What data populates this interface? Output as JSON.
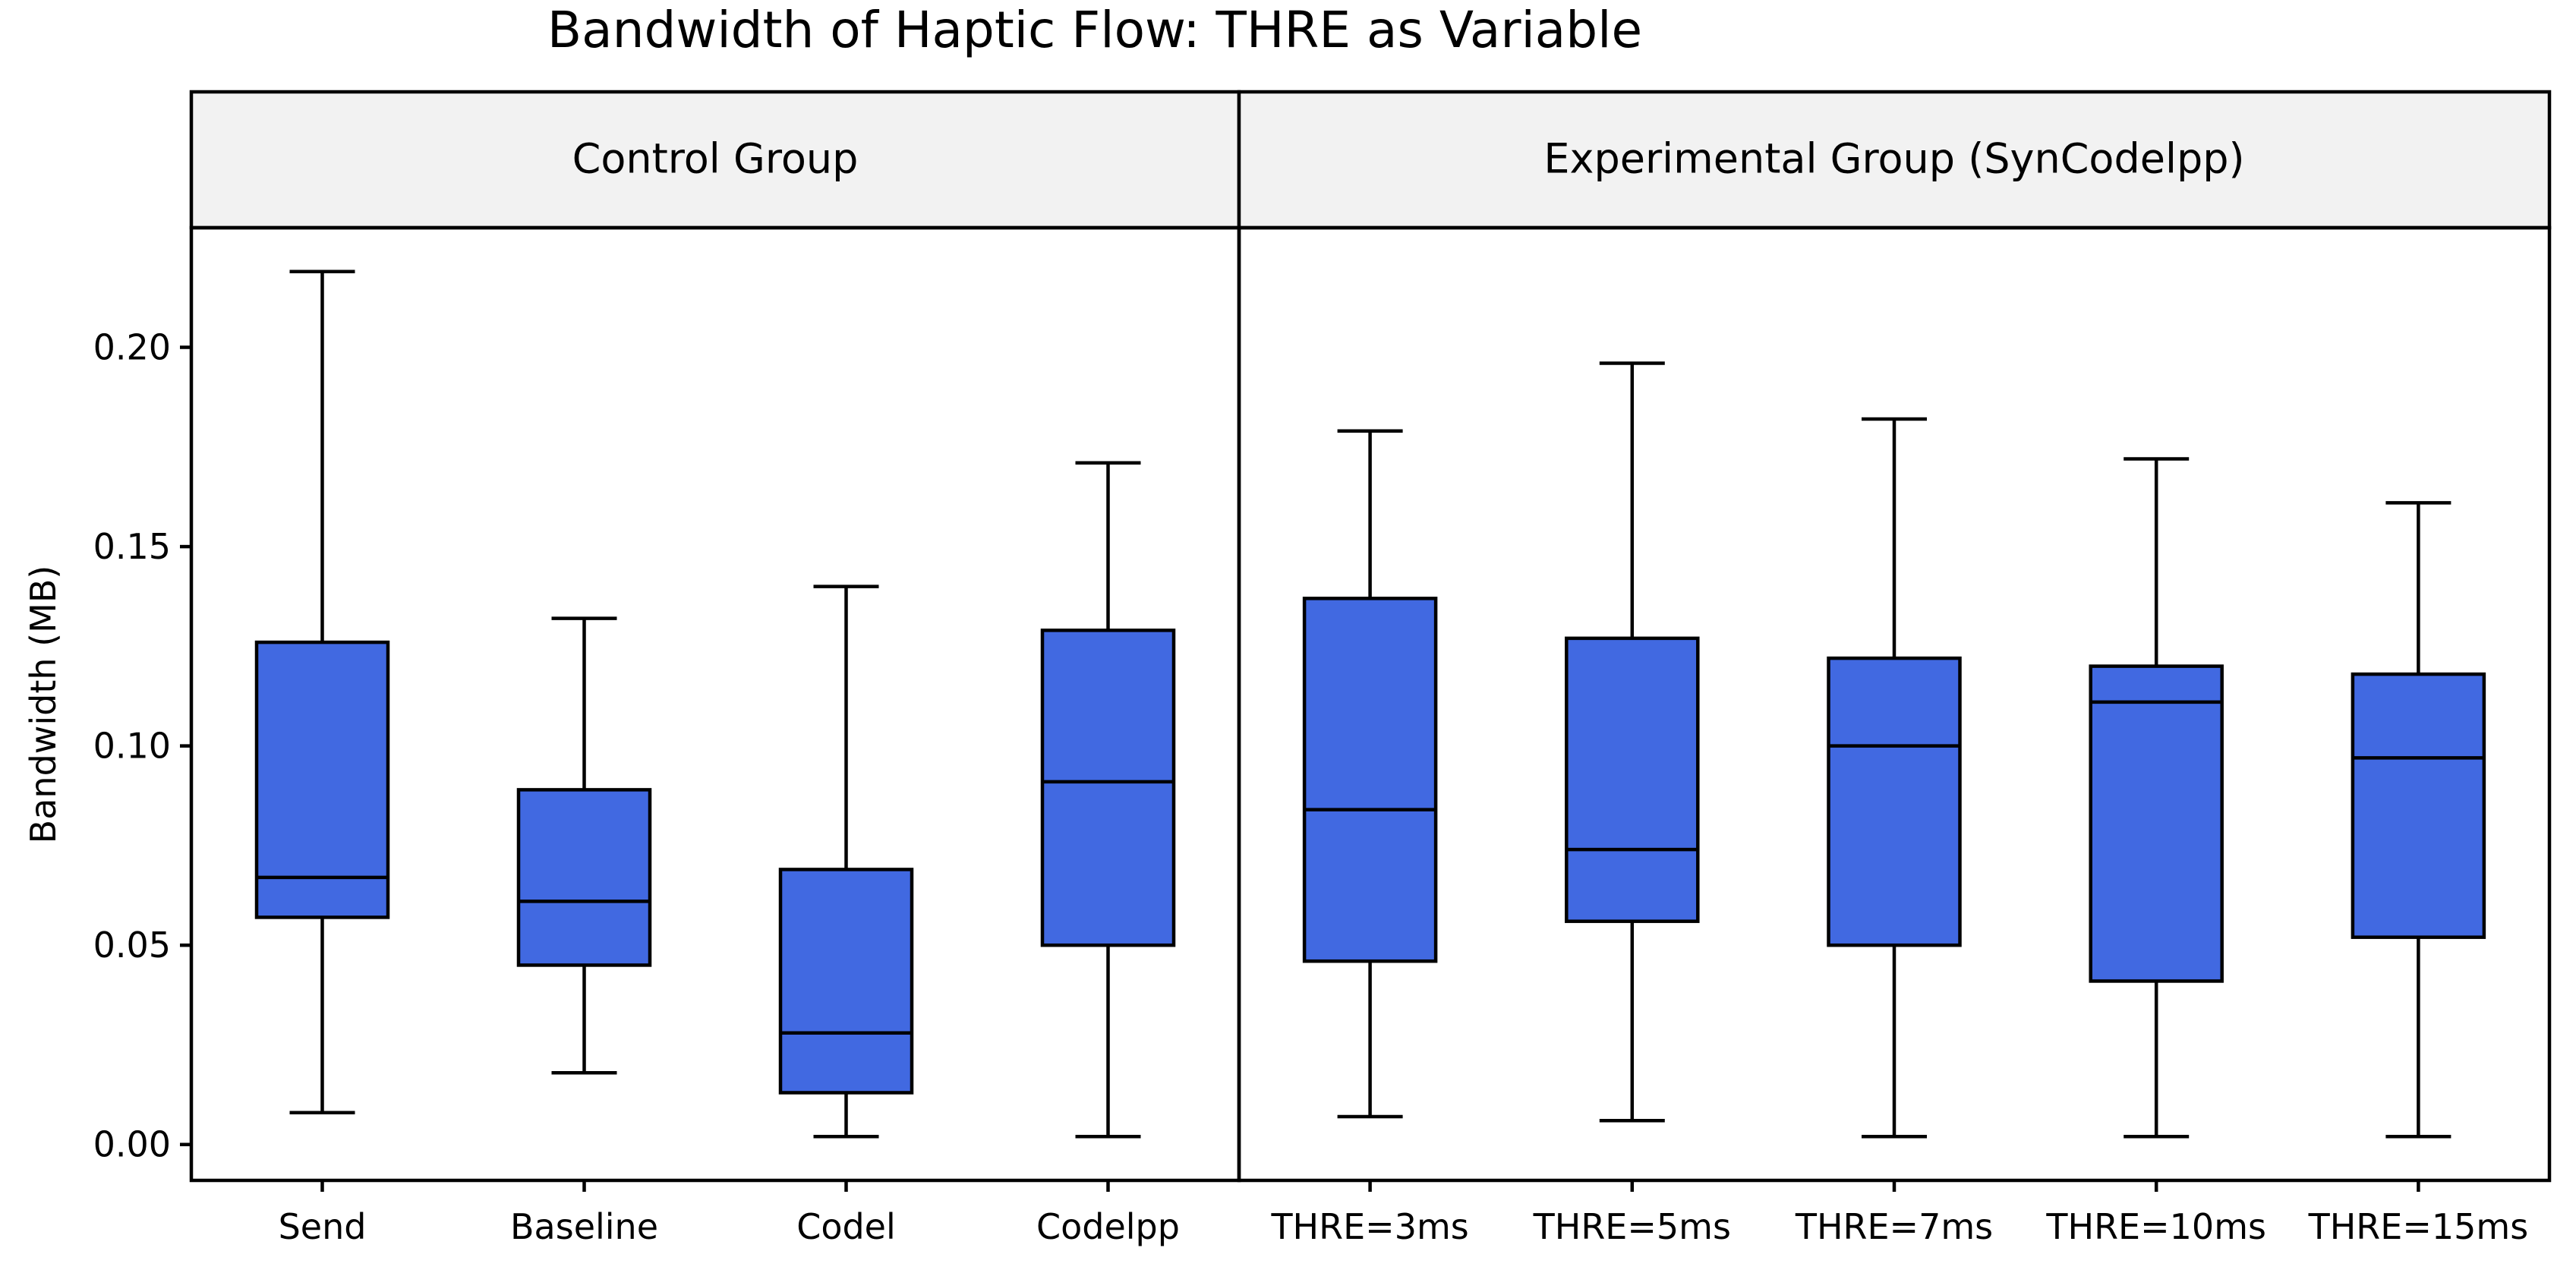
{
  "chart_data": {
    "type": "box",
    "title": "Bandwidth of Haptic Flow: THRE as Variable",
    "ylabel": "Bandwidth (MB)",
    "ylim": [
      -0.009,
      0.23
    ],
    "yticks": [
      0.0,
      0.05,
      0.1,
      0.15,
      0.2
    ],
    "ytick_labels": [
      "0.00",
      "0.05",
      "0.10",
      "0.15",
      "0.20"
    ],
    "grid": false,
    "colors": {
      "box_fill": "#4169E1",
      "stroke": "#000000",
      "panel_header_fill": "#F2F2F2"
    },
    "panels": [
      {
        "title": "Control Group",
        "boxes": [
          {
            "label": "Send",
            "whisker_low": 0.008,
            "q1": 0.057,
            "median": 0.067,
            "q3": 0.126,
            "whisker_high": 0.219
          },
          {
            "label": "Baseline",
            "whisker_low": 0.018,
            "q1": 0.045,
            "median": 0.061,
            "q3": 0.089,
            "whisker_high": 0.132
          },
          {
            "label": "Codel",
            "whisker_low": 0.002,
            "q1": 0.013,
            "median": 0.028,
            "q3": 0.069,
            "whisker_high": 0.14
          },
          {
            "label": "Codelpp",
            "whisker_low": 0.002,
            "q1": 0.05,
            "median": 0.091,
            "q3": 0.129,
            "whisker_high": 0.171
          }
        ]
      },
      {
        "title": "Experimental Group (SynCodelpp)",
        "boxes": [
          {
            "label": "THRE=3ms",
            "whisker_low": 0.007,
            "q1": 0.046,
            "median": 0.084,
            "q3": 0.137,
            "whisker_high": 0.179
          },
          {
            "label": "THRE=5ms",
            "whisker_low": 0.006,
            "q1": 0.056,
            "median": 0.074,
            "q3": 0.127,
            "whisker_high": 0.196
          },
          {
            "label": "THRE=7ms",
            "whisker_low": 0.002,
            "q1": 0.05,
            "median": 0.1,
            "q3": 0.122,
            "whisker_high": 0.182
          },
          {
            "label": "THRE=10ms",
            "whisker_low": 0.002,
            "q1": 0.041,
            "median": 0.111,
            "q3": 0.12,
            "whisker_high": 0.172
          },
          {
            "label": "THRE=15ms",
            "whisker_low": 0.002,
            "q1": 0.052,
            "median": 0.097,
            "q3": 0.118,
            "whisker_high": 0.161
          }
        ]
      }
    ]
  }
}
